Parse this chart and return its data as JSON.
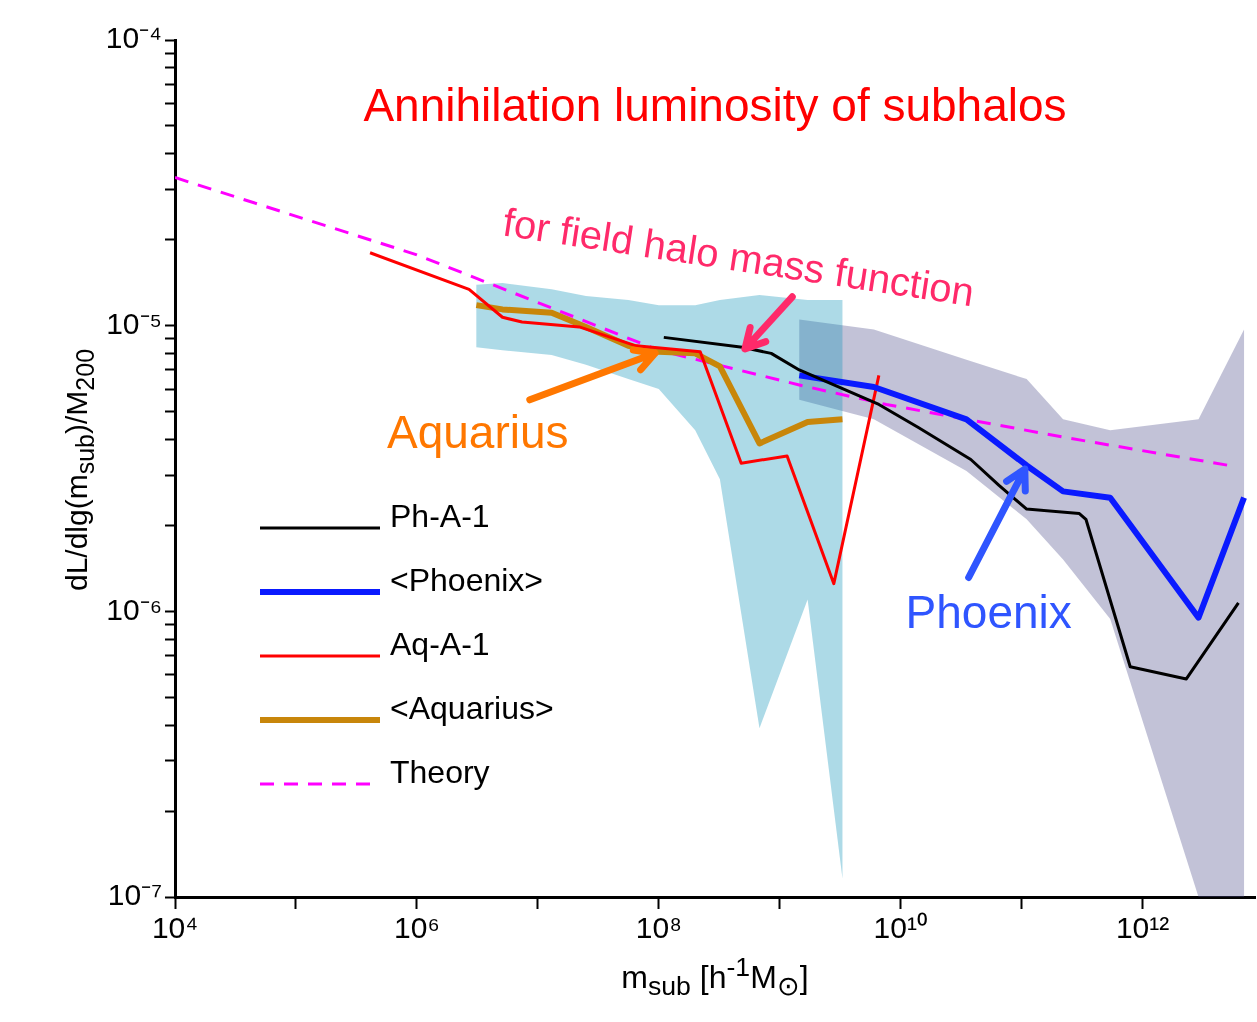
{
  "chart_data": {
    "type": "line",
    "xlabel": "m$_{sub}$ [h$^{-1}$M$_{⊙}$]",
    "ylabel": "dL/dlg(m$_{sub}$)/M$_{200}$",
    "log": "xy",
    "grid": false,
    "legend": "bottom left",
    "marker": "none",
    "line_style": "solid",
    "xlim": [
      10000,
      8500000000000.0
    ],
    "xticks": [
      {
        "value": 10000,
        "label": "10⁴"
      },
      {
        "value": 100000,
        "label": null
      },
      {
        "value": 1000000,
        "label": "10⁶"
      },
      {
        "value": 10000000,
        "label": null
      },
      {
        "value": 100000000,
        "label": "10⁸"
      },
      {
        "value": 1000000000,
        "label": null
      },
      {
        "value": 10000000000,
        "label": "10¹⁰"
      },
      {
        "value": 100000000000,
        "label": null
      },
      {
        "value": 1000000000000,
        "label": "10¹²"
      }
    ],
    "ylim": [
      1e-07,
      0.0001
    ],
    "yticks": [
      {
        "value": 1e-07,
        "label": "10⁻⁷"
      },
      {
        "value": 2e-07,
        "label": null
      },
      {
        "value": 3e-07,
        "label": null
      },
      {
        "value": 4e-07,
        "label": null
      },
      {
        "value": 5e-07,
        "label": null
      },
      {
        "value": 6e-07,
        "label": null
      },
      {
        "value": 7e-07,
        "label": null
      },
      {
        "value": 8e-07,
        "label": null
      },
      {
        "value": 9e-07,
        "label": null
      },
      {
        "value": 1e-06,
        "label": "10⁻⁶"
      },
      {
        "value": 2e-06,
        "label": null
      },
      {
        "value": 3e-06,
        "label": null
      },
      {
        "value": 4e-06,
        "label": null
      },
      {
        "value": 5e-06,
        "label": null
      },
      {
        "value": 6e-06,
        "label": null
      },
      {
        "value": 7e-06,
        "label": null
      },
      {
        "value": 8e-06,
        "label": null
      },
      {
        "value": 9e-06,
        "label": null
      },
      {
        "value": 1e-05,
        "label": "10⁻⁵"
      },
      {
        "value": 2e-05,
        "label": null
      },
      {
        "value": 3e-05,
        "label": null
      },
      {
        "value": 4e-05,
        "label": null
      },
      {
        "value": 5e-05,
        "label": null
      },
      {
        "value": 6e-05,
        "label": null
      },
      {
        "value": 7e-05,
        "label": null
      },
      {
        "value": 8e-05,
        "label": null
      },
      {
        "value": 9e-05,
        "label": null
      },
      {
        "value": 0.0001,
        "label": "10⁻⁴"
      }
    ],
    "series": [
      {
        "name": "Ph-A-1",
        "color": "#000000",
        "type": "line",
        "x": [
          110000000.0,
          490000000.0,
          850000000.0,
          1450000000.0,
          6600000000.0,
          14000000000.0,
          38000000000.0,
          65000000000.0,
          110000000000.0,
          300000000000.0,
          340000000000.0,
          790000000000.0,
          2300000000000.0,
          6200000000000.0
        ],
        "values": [
          9.1e-06,
          8.4e-06,
          8e-06,
          7e-06,
          5.3e-06,
          4.4e-06,
          3.4e-06,
          2.76e-06,
          2.28e-06,
          2.2e-06,
          2.1e-06,
          6.4e-07,
          5.8e-07,
          1.07e-06
        ]
      },
      {
        "name": "<Phoenix>",
        "color": "#0a1aff",
        "type": "line",
        "x": [
          1450000000.0,
          6000000000.0,
          35000000000.0,
          110000000000.0,
          220000000000.0,
          540000000000.0,
          2900000000000.0,
          6900000000000.0
        ],
        "values": [
          6.7e-06,
          6.1e-06,
          4.7e-06,
          3.24e-06,
          2.63e-06,
          2.5e-06,
          9.5e-07,
          2.5e-06
        ],
        "lower": [
          5.5e-06,
          4.7e-06,
          3.1e-06,
          2.1e-06,
          1.52e-06,
          9.4e-07,
          1e-07,
          1e-07
        ],
        "upper": [
          1.05e-05,
          9.7e-06,
          7.6e-06,
          6.5e-06,
          4.7e-06,
          4.3e-06,
          4.7e-06,
          9.7e-06
        ]
      },
      {
        "name": "Aq-A-1",
        "color": "#ff0000",
        "type": "line",
        "x": [
          410000.0,
          2700000.0,
          5100000.0,
          7400000.0,
          22000000.0,
          65000000.0,
          220000000.0,
          480000000.0,
          1150000000.0,
          2800000000.0,
          6600000000.0
        ],
        "values": [
          1.8e-05,
          1.34e-05,
          1.07e-05,
          1.03e-05,
          9.9e-06,
          8.5e-06,
          8.1e-06,
          3.3e-06,
          3.5e-06,
          1.25e-06,
          6.7e-06
        ]
      },
      {
        "name": "<Aquarius>",
        "color": "#c8860a",
        "type": "line",
        "x": [
          3100000.0,
          5100000.0,
          13000000.0,
          25000000.0,
          56000000.0,
          100000000.0,
          200000000.0,
          320000000.0,
          680000000.0,
          1700000000.0,
          3300000000.0
        ],
        "values": [
          1.18e-05,
          1.14e-05,
          1.11e-05,
          9.9e-06,
          8.5e-06,
          8.1e-06,
          8e-06,
          7.2e-06,
          3.87e-06,
          4.6e-06,
          4.7e-06
        ],
        "lower": [
          8.4e-06,
          8.2e-06,
          7.9e-06,
          7.3e-06,
          6.5e-06,
          6e-06,
          4.3e-06,
          2.9e-06,
          3.9e-07,
          1.1e-06,
          1.16e-07
        ],
        "upper": [
          1.39e-05,
          1.41e-05,
          1.34e-05,
          1.27e-05,
          1.23e-05,
          1.18e-05,
          1.18e-05,
          1.23e-05,
          1.28e-05,
          1.23e-05,
          1.23e-05
        ]
      },
      {
        "name": "Theory",
        "color": "#ff00ff",
        "type": "line",
        "line_style": "dashed",
        "x": [
          10000,
          1000000,
          100000000,
          1450000000.0,
          7600000000.0,
          230000000000.0,
          5200000000000.0
        ],
        "values": [
          3.3e-05,
          1.77e-05,
          8.2e-06,
          6.2e-06,
          5.3e-06,
          4.06e-06,
          3.24e-06
        ]
      }
    ],
    "annotations": [
      "Annihilation luminosity of subhalos",
      {
        "text": "for field halo mass function",
        "x": 490000000.0,
        "y": 8.1e-06
      },
      {
        "text": "Aquarius",
        "x": 100000000.0,
        "y": 8.1e-06
      },
      {
        "text": "Phoenix",
        "x": 110000000000.0,
        "y": 3.24e-06
      }
    ]
  }
}
